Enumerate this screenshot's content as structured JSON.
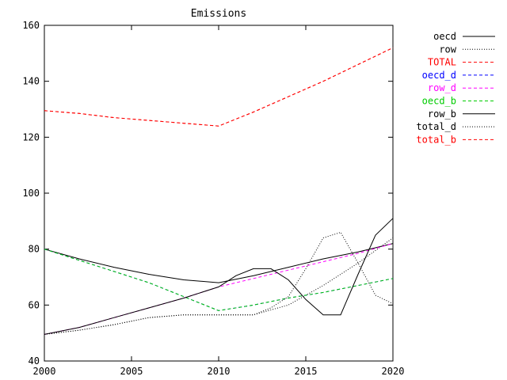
{
  "chart_data": {
    "type": "line",
    "title": "Emissions",
    "xlabel": "",
    "ylabel": "",
    "xlim": [
      2000,
      2020
    ],
    "ylim": [
      40,
      160
    ],
    "xticks": [
      2000,
      2005,
      2010,
      2015,
      2020
    ],
    "yticks": [
      40,
      60,
      80,
      100,
      120,
      140,
      160
    ],
    "grid": false,
    "legend_position": "right-top",
    "series": [
      {
        "name": "oecd",
        "color": "#000000",
        "dash": "solid",
        "x": [
          2000,
          2002,
          2004,
          2006,
          2008,
          2010,
          2012,
          2014,
          2016,
          2018,
          2020
        ],
        "y": [
          80.0,
          76.5,
          73.5,
          71.0,
          69.0,
          68.0,
          70.5,
          73.5,
          76.5,
          79.0,
          82.0
        ]
      },
      {
        "name": "row",
        "color": "#000000",
        "dash": "dotted",
        "x": [
          2000,
          2002,
          2004,
          2006,
          2008,
          2010,
          2012,
          2014,
          2016,
          2018,
          2020
        ],
        "y": [
          49.5,
          51.0,
          53.0,
          55.5,
          56.5,
          56.5,
          56.5,
          60.0,
          67.0,
          75.0,
          84.0
        ]
      },
      {
        "name": "TOTAL",
        "color": "#ff0000",
        "dash": "dashed",
        "x": [
          2000,
          2002,
          2004,
          2006,
          2008,
          2010,
          2012,
          2014,
          2016,
          2018,
          2020
        ],
        "y": [
          129.5,
          128.5,
          127.0,
          126.0,
          125.0,
          124.0,
          129.0,
          134.5,
          140.0,
          146.0,
          152.0
        ]
      },
      {
        "name": "oecd_d",
        "color": "#0000ff",
        "dash": "dashed",
        "x": [
          2000,
          2002,
          2004,
          2006,
          2008,
          2010,
          2012,
          2014,
          2016,
          2018,
          2020
        ],
        "y": [
          80.0,
          76.0,
          72.0,
          68.0,
          63.0,
          58.0,
          60.0,
          62.5,
          64.5,
          67.0,
          69.5
        ]
      },
      {
        "name": "row_d",
        "color": "#ff00ff",
        "dash": "dashed",
        "x": [
          2000,
          2002,
          2004,
          2006,
          2008,
          2010,
          2012,
          2014,
          2016,
          2018,
          2020
        ],
        "y": [
          49.5,
          52.0,
          55.5,
          59.0,
          62.5,
          66.5,
          69.5,
          72.5,
          75.5,
          78.5,
          82.0
        ]
      },
      {
        "name": "oecd_b",
        "color": "#00cc00",
        "dash": "dashed",
        "x": [
          2000,
          2002,
          2004,
          2006,
          2008,
          2010,
          2012,
          2014,
          2016,
          2018,
          2020
        ],
        "y": [
          80.0,
          76.0,
          72.0,
          68.0,
          63.0,
          58.0,
          60.0,
          62.5,
          64.5,
          67.0,
          69.5
        ]
      },
      {
        "name": "row_b",
        "color": "#000000",
        "dash": "solid",
        "x": [
          2000,
          2002,
          2004,
          2006,
          2008,
          2010,
          2011,
          2012,
          2013,
          2014,
          2015,
          2016,
          2017,
          2018,
          2019,
          2020
        ],
        "y": [
          49.5,
          52.0,
          55.5,
          59.0,
          62.5,
          66.5,
          70.5,
          73.0,
          73.0,
          69.0,
          62.0,
          56.5,
          56.5,
          71.0,
          85.0,
          91.0
        ]
      },
      {
        "name": "total_d",
        "color": "#000000",
        "dash": "dotted",
        "x": [
          2000,
          2002,
          2004,
          2006,
          2008,
          2010,
          2012,
          2013,
          2014,
          2015,
          2016,
          2017,
          2018,
          2019,
          2020
        ],
        "y": [
          49.5,
          51.0,
          53.0,
          55.5,
          56.5,
          56.5,
          56.5,
          59.0,
          63.0,
          73.0,
          84.0,
          86.0,
          75.0,
          63.5,
          60.5
        ]
      },
      {
        "name": "total_b",
        "color": "#ff0000",
        "dash": "dashed",
        "x": [
          2000,
          2002,
          2004,
          2006,
          2008,
          2010,
          2012,
          2014,
          2016,
          2018,
          2020
        ],
        "y": [
          129.5,
          128.5,
          127.0,
          126.0,
          125.0,
          124.0,
          129.0,
          134.5,
          140.0,
          146.0,
          152.0
        ]
      }
    ]
  }
}
